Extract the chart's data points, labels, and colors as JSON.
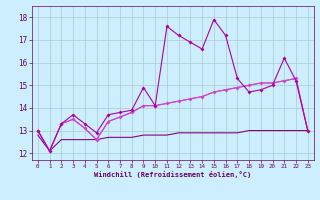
{
  "x": [
    0,
    1,
    2,
    3,
    4,
    5,
    6,
    7,
    8,
    9,
    10,
    11,
    12,
    13,
    14,
    15,
    16,
    17,
    18,
    19,
    20,
    21,
    22,
    23
  ],
  "line1": [
    13.0,
    12.1,
    13.3,
    13.7,
    13.3,
    12.9,
    13.7,
    13.8,
    13.9,
    14.9,
    14.1,
    17.6,
    17.2,
    16.9,
    16.6,
    17.9,
    17.2,
    15.3,
    14.7,
    14.8,
    15.0,
    16.2,
    15.2,
    13.0
  ],
  "line2": [
    13.0,
    12.1,
    13.3,
    13.5,
    13.1,
    12.6,
    13.4,
    13.6,
    13.8,
    14.1,
    14.1,
    14.2,
    14.3,
    14.4,
    14.5,
    14.7,
    14.8,
    14.9,
    15.0,
    15.1,
    15.1,
    15.2,
    15.3,
    13.0
  ],
  "line3": [
    13.0,
    12.1,
    13.3,
    13.5,
    13.1,
    12.6,
    13.4,
    13.6,
    13.8,
    14.1,
    14.1,
    14.2,
    14.3,
    14.4,
    14.5,
    14.7,
    14.8,
    14.9,
    15.0,
    15.1,
    15.1,
    15.2,
    15.3,
    13.0
  ],
  "line4": [
    12.8,
    12.1,
    12.6,
    12.6,
    12.6,
    12.6,
    12.7,
    12.7,
    12.7,
    12.8,
    12.8,
    12.8,
    12.9,
    12.9,
    12.9,
    12.9,
    12.9,
    12.9,
    13.0,
    13.0,
    13.0,
    13.0,
    13.0,
    13.0
  ],
  "line_color1": "#aa00aa",
  "line_color2": "#cc44cc",
  "line_color3": "#cc44cc",
  "line_color4": "#880088",
  "background_color": "#cceeff",
  "grid_color": "#aacccc",
  "xlabel": "Windchill (Refroidissement éolien,°C)",
  "ylabel_min": 12,
  "ylabel_max": 18,
  "xlim": [
    -0.5,
    23.5
  ],
  "ylim": [
    11.7,
    18.5
  ],
  "yticks": [
    12,
    13,
    14,
    15,
    16,
    17,
    18
  ],
  "xticks": [
    0,
    1,
    2,
    3,
    4,
    5,
    6,
    7,
    8,
    9,
    10,
    11,
    12,
    13,
    14,
    15,
    16,
    17,
    18,
    19,
    20,
    21,
    22,
    23
  ],
  "marker": "D",
  "markersize": 2.0,
  "linewidth": 0.8,
  "xlabel_color": "#660066",
  "tick_color": "#660066",
  "axis_color": "#660066"
}
